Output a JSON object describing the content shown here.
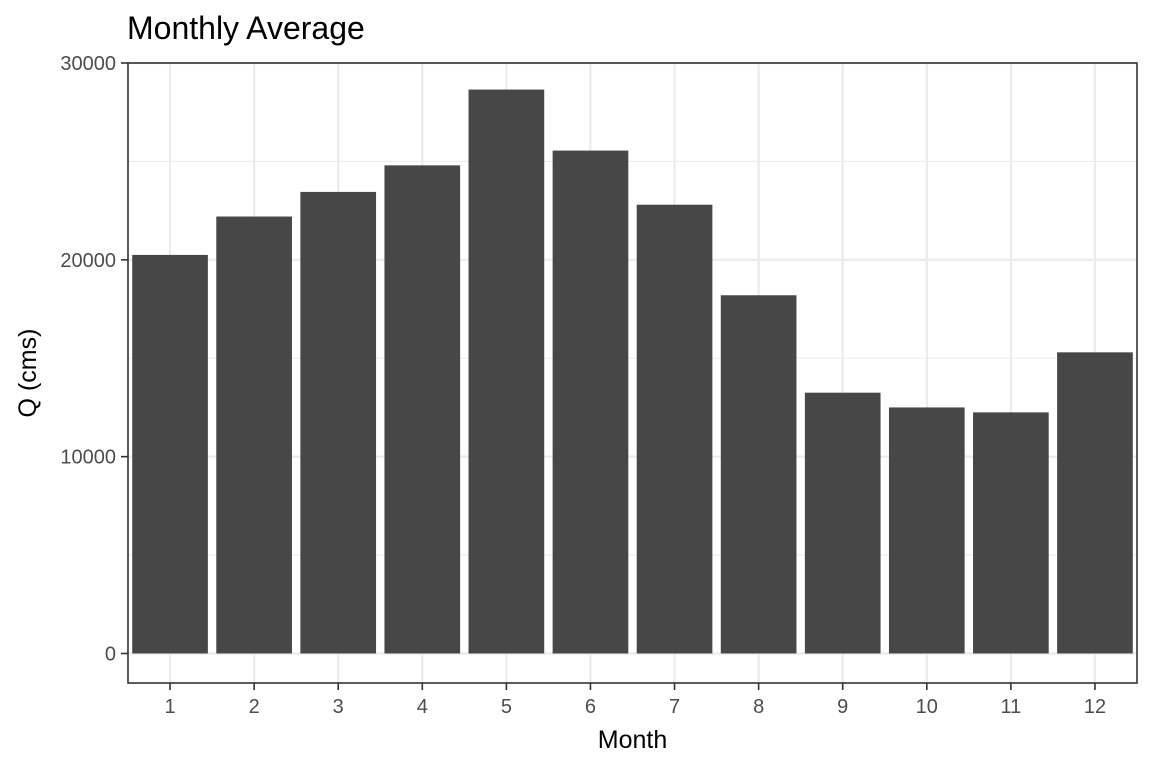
{
  "chart_data": {
    "type": "bar",
    "title": "Monthly Average",
    "xlabel": "Month",
    "ylabel": "Q (cms)",
    "categories": [
      "1",
      "2",
      "3",
      "4",
      "5",
      "6",
      "7",
      "8",
      "9",
      "10",
      "11",
      "12"
    ],
    "values": [
      20250,
      22200,
      23450,
      24800,
      28650,
      25550,
      22800,
      18200,
      13250,
      12500,
      12250,
      15300
    ],
    "ylim": [
      -1500,
      30000
    ],
    "yticks": [
      0,
      10000,
      20000,
      30000
    ],
    "ytick_labels": [
      "0",
      "10000",
      "20000",
      "30000"
    ],
    "bar_color": "#474747",
    "grid": true,
    "legend": "none"
  }
}
